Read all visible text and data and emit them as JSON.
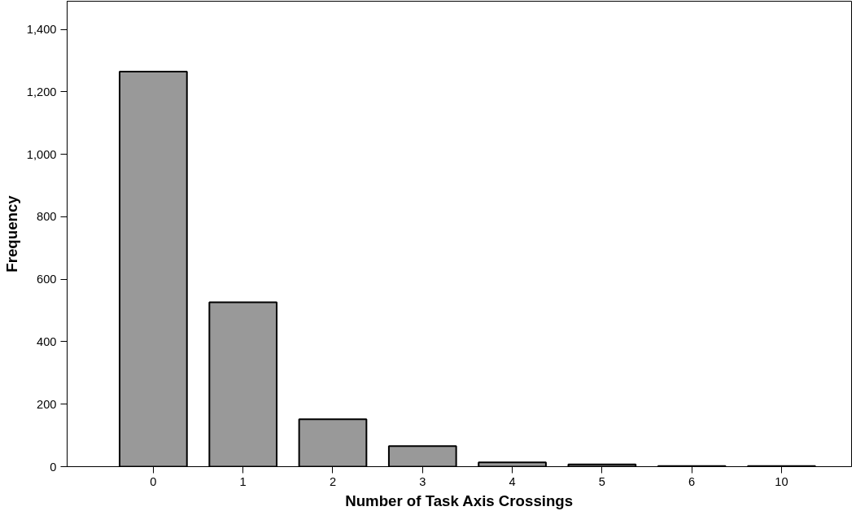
{
  "chart_data": {
    "type": "bar",
    "xlabel": "Number of Task Axis Crossings",
    "ylabel": "Frequency",
    "categories": [
      "0",
      "1",
      "2",
      "3",
      "4",
      "5",
      "6",
      "10"
    ],
    "values": [
      1265,
      526,
      152,
      66,
      14,
      7,
      2,
      2
    ],
    "color": "#999999",
    "ylim": [
      0,
      1490
    ],
    "yticks": [
      0,
      {
        "value": 200,
        "label": "200"
      },
      {
        "value": 400,
        "label": "400"
      },
      {
        "value": 600,
        "label": "600"
      },
      {
        "value": 800,
        "label": "800"
      },
      {
        "value": 1000,
        "label": "1,000"
      },
      {
        "value": 1200,
        "label": "1,200"
      },
      {
        "value": 1400,
        "label": "1,400"
      }
    ],
    "grid": false
  }
}
